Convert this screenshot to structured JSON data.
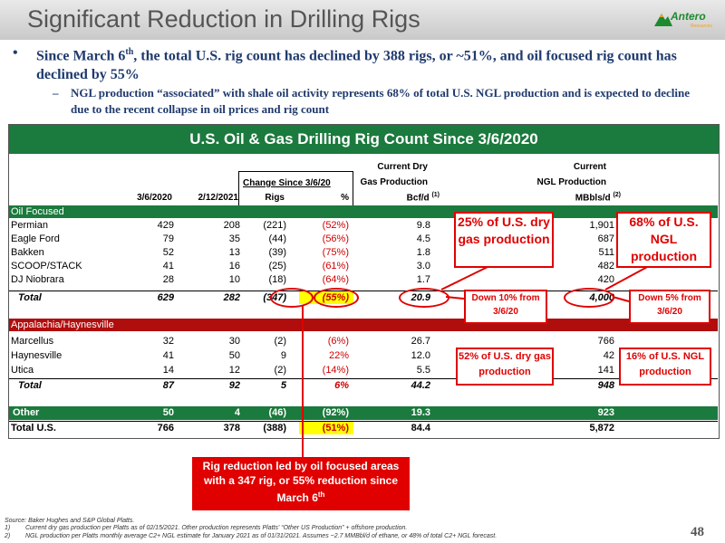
{
  "title": "Significant Reduction in Drilling Rigs",
  "logo": {
    "name": "Antero",
    "subtitle": "Resources",
    "icon": "mountain-logo-icon",
    "color": "#1e8a2e"
  },
  "bullets": {
    "main": {
      "symbol": "•",
      "text_a": "Since March 6",
      "sup": "th",
      "text_b": ",  the total U.S. rig count has declined by 388 rigs, or ~51%, and oil focused rig count has declined by 55%"
    },
    "sub": {
      "symbol": "–",
      "text": "NGL production “associated” with shale oil activity represents 68% of total U.S. NGL production and is expected to decline due to the recent collapse in oil prices and rig count"
    }
  },
  "table": {
    "title": "U.S. Oil & Gas Drilling Rig Count Since 3/6/2020",
    "header": {
      "change_group": "Change Since 3/6/20",
      "col_3_6": "3/6/2020",
      "col_2_12": "2/12/2021",
      "col_rigs": "Rigs",
      "col_pct": "%",
      "gas_line1": "Current Dry",
      "gas_line2": "Gas Production",
      "gas_line3": "Bcf/d",
      "gas_sup": "(1)",
      "ngl_line1": "Current",
      "ngl_line2": "NGL Production",
      "ngl_line3": "MBbls/d",
      "ngl_sup": "(2)"
    },
    "oil_section": "Oil Focused",
    "oil_rows": [
      {
        "name": "Permian",
        "v1": "429",
        "v2": "208",
        "rigs": "(221)",
        "pct": "(52%)",
        "gas": "9.8",
        "ngl": "1,901"
      },
      {
        "name": "Eagle Ford",
        "v1": "79",
        "v2": "35",
        "rigs": "(44)",
        "pct": "(56%)",
        "gas": "4.5",
        "ngl": "687"
      },
      {
        "name": "Bakken",
        "v1": "52",
        "v2": "13",
        "rigs": "(39)",
        "pct": "(75%)",
        "gas": "1.8",
        "ngl": "511"
      },
      {
        "name": "SCOOP/STACK",
        "v1": "41",
        "v2": "16",
        "rigs": "(25)",
        "pct": "(61%)",
        "gas": "3.0",
        "ngl": "482"
      },
      {
        "name": "DJ Niobrara",
        "v1": "28",
        "v2": "10",
        "rigs": "(18)",
        "pct": "(64%)",
        "gas": "1.7",
        "ngl": "420"
      }
    ],
    "oil_total": {
      "name": "Total",
      "v1": "629",
      "v2": "282",
      "rigs": "(347)",
      "pct": "(55%)",
      "gas": "20.9",
      "ngl": "4,000"
    },
    "app_section": "Appalachia/Haynesville",
    "app_rows": [
      {
        "name": "Marcellus",
        "v1": "32",
        "v2": "30",
        "rigs": "(2)",
        "pct": "(6%)",
        "gas": "26.7",
        "ngl": "766"
      },
      {
        "name": "Haynesville",
        "v1": "41",
        "v2": "50",
        "rigs": "9",
        "pct": "22%",
        "gas": "12.0",
        "ngl": "42"
      },
      {
        "name": "Utica",
        "v1": "14",
        "v2": "12",
        "rigs": "(2)",
        "pct": "(14%)",
        "gas": "5.5",
        "ngl": "141"
      }
    ],
    "app_total": {
      "name": "Total",
      "v1": "87",
      "v2": "92",
      "rigs": "5",
      "pct": "6%",
      "gas": "44.2",
      "ngl": "948"
    },
    "other": {
      "name": "Other",
      "v1": "50",
      "v2": "4",
      "rigs": "(46)",
      "pct": "(92%)",
      "gas": "19.3",
      "ngl": "923"
    },
    "total_us": {
      "name": "Total U.S.",
      "v1": "766",
      "v2": "378",
      "rigs": "(388)",
      "pct": "(51%)",
      "gas": "84.4",
      "ngl": "5,872"
    }
  },
  "annotations": {
    "dry_gas_25": "25% of U.S. dry gas production",
    "ngl_68": "68% of U.S. NGL production",
    "down10": "Down 10% from 3/6/20",
    "down5": "Down 5% from 3/6/20",
    "dry_gas_52": "52% of U.S. dry gas production",
    "ngl_16": "16% of U.S. NGL production",
    "callout_a": "Rig reduction led by oil focused areas with a 347 rig, or 55% reduction since March 6",
    "callout_sup": "th"
  },
  "footnotes": {
    "source": "Source: Baker Hughes and S&P Global Platts.",
    "n1_num": "1)",
    "n1": "Current dry gas production per Platts as of 02/15/2021. Other production represents Platts' “Other US Production” + offshore production.",
    "n2_num": "2)",
    "n2": "NGL production per Platts monthly average C2+ NGL estimate for January 2021 as of 01/31/2021.  Assumes ~2.7 MMBbl/d of ethane, or 48% of total C2+ NGL forecast."
  },
  "page_number": "48",
  "colors": {
    "accent_green": "#1b7a3d",
    "section_red": "#b00d0d",
    "annotation_red": "#e00000",
    "title_blue": "#1f3a6e",
    "highlight": "#ffff00"
  }
}
